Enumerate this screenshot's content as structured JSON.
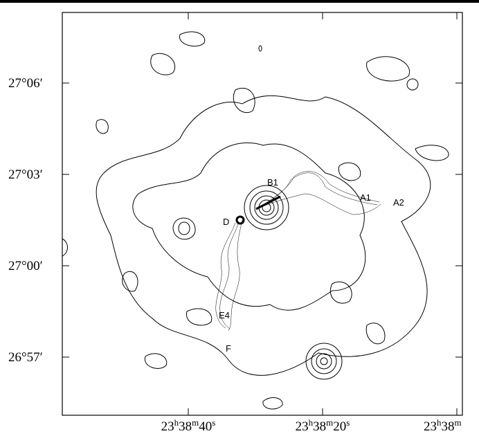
{
  "axes": {
    "y_tick_labels": [
      "27°06′",
      "27°03′",
      "27°00′",
      "26°57′"
    ],
    "x_tick_labels": [
      [
        "23",
        "h",
        "38",
        "m",
        "40",
        "s"
      ],
      [
        "23",
        "h",
        "38",
        "m",
        "20",
        "s"
      ],
      [
        "23",
        "h",
        "38",
        "m"
      ]
    ]
  },
  "annotations": [
    "B1",
    "A1",
    "A2",
    "D",
    "E4",
    "F"
  ]
}
